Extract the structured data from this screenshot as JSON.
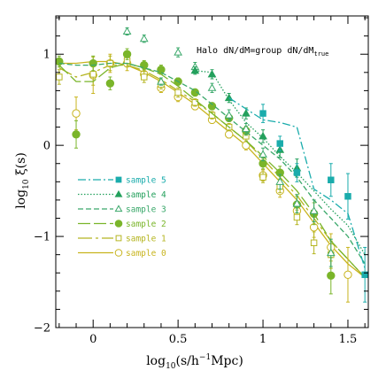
{
  "chart_data": {
    "type": "line",
    "title": "",
    "annotation": {
      "text": "Halo dN/dM=group dN/dM",
      "subscript": "true"
    },
    "xlabel": {
      "main": "log",
      "sub": "10",
      "rest": "(s/h",
      "sup": "−1",
      "tail": "Mpc)"
    },
    "ylabel": {
      "main": "log",
      "sub": "10",
      "rest": " ξ(s)"
    },
    "xlim": [
      -0.22,
      1.62
    ],
    "ylim": [
      -2.0,
      1.42
    ],
    "xticks": [
      {
        "v": 0,
        "label": "0"
      },
      {
        "v": 0.5,
        "label": "0.5"
      },
      {
        "v": 1,
        "label": "1"
      },
      {
        "v": 1.5,
        "label": "1.5"
      }
    ],
    "yticks": [
      {
        "v": -2,
        "label": "−2"
      },
      {
        "v": -1,
        "label": "−1"
      },
      {
        "v": 0,
        "label": "0"
      },
      {
        "v": 1,
        "label": "1"
      }
    ],
    "grid": false,
    "legend_position": "left-middle",
    "series": [
      {
        "name": "sample 5",
        "color": "#1aacac",
        "dash": "9,3,2,3",
        "marker": "square",
        "filled": true,
        "line": [
          [
            0.8,
            0.52
          ],
          [
            0.9,
            0.4
          ],
          [
            1.0,
            0.28
          ],
          [
            1.1,
            0.25
          ],
          [
            1.2,
            0.2
          ],
          [
            1.3,
            -0.48
          ],
          [
            1.4,
            -0.6
          ],
          [
            1.5,
            -0.75
          ],
          [
            1.6,
            -1.35
          ]
        ],
        "points": [
          [
            1.0,
            0.35
          ],
          [
            1.1,
            0.02
          ],
          [
            1.2,
            -0.3
          ],
          [
            1.4,
            -0.38
          ],
          [
            1.5,
            -0.56
          ],
          [
            1.6,
            -1.42
          ]
        ],
        "errors": [
          0.1,
          0.08,
          0.1,
          0.18,
          0.25,
          0.3
        ]
      },
      {
        "name": "sample 4",
        "color": "#23a05c",
        "dash": "1.5,2",
        "marker": "triangle",
        "filled": true,
        "line": [
          [
            0.6,
            0.82
          ],
          [
            0.7,
            0.8
          ],
          [
            0.8,
            0.5
          ],
          [
            0.9,
            0.25
          ],
          [
            1.0,
            0.08
          ],
          [
            1.1,
            -0.12
          ],
          [
            1.2,
            -0.3
          ],
          [
            1.3,
            -0.5
          ],
          [
            1.4,
            -0.7
          ],
          [
            1.5,
            -0.88
          ],
          [
            1.6,
            -1.2
          ]
        ],
        "points": [
          [
            0.6,
            0.82
          ],
          [
            0.7,
            0.78
          ],
          [
            0.8,
            0.52
          ],
          [
            0.9,
            0.35
          ],
          [
            1.0,
            0.1
          ],
          [
            1.1,
            -0.05
          ],
          [
            1.2,
            -0.25
          ]
        ],
        "errors": [
          0.04,
          0.05,
          0.05,
          0.06,
          0.07,
          0.08,
          0.1
        ]
      },
      {
        "name": "sample 3",
        "color": "#3aa86a",
        "dash": "6,3",
        "marker": "triangle",
        "filled": false,
        "line": [
          [
            -0.2,
            0.9
          ],
          [
            -0.1,
            0.88
          ],
          [
            0.0,
            0.88
          ],
          [
            0.1,
            0.9
          ],
          [
            0.2,
            0.9
          ],
          [
            0.3,
            0.85
          ],
          [
            0.4,
            0.8
          ],
          [
            0.5,
            0.7
          ],
          [
            0.6,
            0.6
          ],
          [
            0.7,
            0.45
          ],
          [
            0.8,
            0.3
          ],
          [
            0.9,
            0.15
          ],
          [
            1.0,
            0.0
          ],
          [
            1.1,
            -0.15
          ],
          [
            1.2,
            -0.35
          ],
          [
            1.3,
            -0.6
          ],
          [
            1.4,
            -0.8
          ],
          [
            1.5,
            -1.0
          ],
          [
            1.6,
            -1.3
          ]
        ],
        "points": [
          [
            0.2,
            1.25
          ],
          [
            0.3,
            1.17
          ],
          [
            0.4,
            0.7
          ],
          [
            0.5,
            1.02
          ],
          [
            0.6,
            0.86
          ],
          [
            0.7,
            0.63
          ],
          [
            0.8,
            0.33
          ],
          [
            0.9,
            0.18
          ],
          [
            1.0,
            -0.1
          ],
          [
            1.1,
            -0.4
          ],
          [
            1.2,
            -0.64
          ],
          [
            1.3,
            -0.72
          ],
          [
            1.4,
            -1.18
          ]
        ],
        "errors": [
          0.04,
          0.04,
          0.04,
          0.05,
          0.05,
          0.05,
          0.06,
          0.06,
          0.07,
          0.08,
          0.1,
          0.12,
          0.15
        ]
      },
      {
        "name": "sample 2",
        "color": "#7ab52a",
        "dash": "14,4",
        "marker": "circle",
        "filled": true,
        "line": [
          [
            -0.2,
            0.88
          ],
          [
            -0.1,
            0.7
          ],
          [
            0.0,
            0.7
          ],
          [
            0.1,
            0.85
          ],
          [
            0.2,
            0.9
          ],
          [
            0.3,
            0.85
          ],
          [
            0.4,
            0.78
          ],
          [
            0.5,
            0.65
          ],
          [
            0.6,
            0.5
          ],
          [
            0.7,
            0.35
          ],
          [
            0.8,
            0.2
          ],
          [
            0.9,
            0.05
          ],
          [
            1.0,
            -0.12
          ],
          [
            1.1,
            -0.3
          ],
          [
            1.2,
            -0.5
          ],
          [
            1.3,
            -0.75
          ],
          [
            1.4,
            -1.05
          ],
          [
            1.5,
            -1.25
          ],
          [
            1.6,
            -1.45
          ]
        ],
        "points": [
          [
            -0.2,
            0.92
          ],
          [
            -0.1,
            0.12
          ],
          [
            0.0,
            0.9
          ],
          [
            0.1,
            0.68
          ],
          [
            0.2,
            1.0
          ],
          [
            0.3,
            0.88
          ],
          [
            0.4,
            0.83
          ],
          [
            0.5,
            0.7
          ],
          [
            0.6,
            0.58
          ],
          [
            0.7,
            0.43
          ],
          [
            0.8,
            0.3
          ],
          [
            0.9,
            0.16
          ],
          [
            1.0,
            -0.2
          ],
          [
            1.1,
            -0.3
          ],
          [
            1.2,
            -0.65
          ],
          [
            1.3,
            -0.75
          ],
          [
            1.4,
            -1.43
          ]
        ],
        "errors": [
          0.06,
          0.15,
          0.08,
          0.07,
          0.06,
          0.05,
          0.05,
          0.04,
          0.04,
          0.04,
          0.04,
          0.05,
          0.06,
          0.07,
          0.09,
          0.12,
          0.2
        ]
      },
      {
        "name": "sample 1",
        "color": "#b5b520",
        "dash": "16,4,3,4",
        "marker": "square",
        "filled": false,
        "line": [
          [
            -0.2,
            0.85
          ],
          [
            -0.1,
            0.75
          ],
          [
            0.0,
            0.8
          ],
          [
            0.1,
            0.88
          ],
          [
            0.2,
            0.88
          ],
          [
            0.3,
            0.82
          ],
          [
            0.4,
            0.72
          ],
          [
            0.5,
            0.6
          ],
          [
            0.6,
            0.48
          ],
          [
            0.7,
            0.35
          ],
          [
            0.8,
            0.2
          ],
          [
            0.9,
            0.05
          ],
          [
            1.0,
            -0.15
          ],
          [
            1.1,
            -0.35
          ],
          [
            1.2,
            -0.55
          ],
          [
            1.3,
            -0.8
          ],
          [
            1.4,
            -1.05
          ],
          [
            1.5,
            -1.25
          ],
          [
            1.6,
            -1.45
          ]
        ],
        "points": [
          [
            -0.2,
            0.75
          ],
          [
            0.0,
            0.78
          ],
          [
            0.1,
            0.9
          ],
          [
            0.2,
            0.93
          ],
          [
            0.3,
            0.75
          ],
          [
            0.4,
            0.67
          ],
          [
            0.5,
            0.58
          ],
          [
            0.6,
            0.47
          ],
          [
            0.7,
            0.33
          ],
          [
            0.8,
            0.2
          ],
          [
            0.9,
            0.1
          ],
          [
            1.0,
            -0.35
          ],
          [
            1.1,
            -0.45
          ],
          [
            1.2,
            -0.79
          ],
          [
            1.3,
            -1.07
          ],
          [
            1.4,
            -1.2
          ]
        ],
        "errors": [
          0.08,
          0.12,
          0.08,
          0.07,
          0.06,
          0.05,
          0.05,
          0.04,
          0.04,
          0.04,
          0.05,
          0.06,
          0.07,
          0.08,
          0.12,
          0.15
        ]
      },
      {
        "name": "sample 0",
        "color": "#c8b41e",
        "dash": "",
        "marker": "circle",
        "filled": false,
        "line": [
          [
            -0.2,
            0.9
          ],
          [
            -0.1,
            0.9
          ],
          [
            0.0,
            0.92
          ],
          [
            0.1,
            0.92
          ],
          [
            0.2,
            0.88
          ],
          [
            0.3,
            0.8
          ],
          [
            0.4,
            0.7
          ],
          [
            0.5,
            0.58
          ],
          [
            0.6,
            0.45
          ],
          [
            0.7,
            0.3
          ],
          [
            0.8,
            0.15
          ],
          [
            0.9,
            0.0
          ],
          [
            1.0,
            -0.2
          ],
          [
            1.1,
            -0.4
          ],
          [
            1.2,
            -0.6
          ],
          [
            1.3,
            -0.85
          ],
          [
            1.4,
            -1.1
          ],
          [
            1.5,
            -1.3
          ],
          [
            1.6,
            -1.45
          ]
        ],
        "points": [
          [
            -0.1,
            0.35
          ],
          [
            0.0,
            0.77
          ],
          [
            0.1,
            0.9
          ],
          [
            0.2,
            0.9
          ],
          [
            0.3,
            0.78
          ],
          [
            0.4,
            0.63
          ],
          [
            0.5,
            0.53
          ],
          [
            0.6,
            0.43
          ],
          [
            0.7,
            0.28
          ],
          [
            0.8,
            0.12
          ],
          [
            0.9,
            0.0
          ],
          [
            1.0,
            -0.33
          ],
          [
            1.1,
            -0.5
          ],
          [
            1.2,
            -0.72
          ],
          [
            1.3,
            -0.9
          ],
          [
            1.4,
            -1.12
          ],
          [
            1.5,
            -1.42
          ]
        ],
        "errors": [
          0.18,
          0.2,
          0.1,
          0.08,
          0.06,
          0.05,
          0.05,
          0.04,
          0.04,
          0.04,
          0.05,
          0.06,
          0.07,
          0.09,
          0.11,
          0.15,
          0.3
        ]
      }
    ]
  }
}
